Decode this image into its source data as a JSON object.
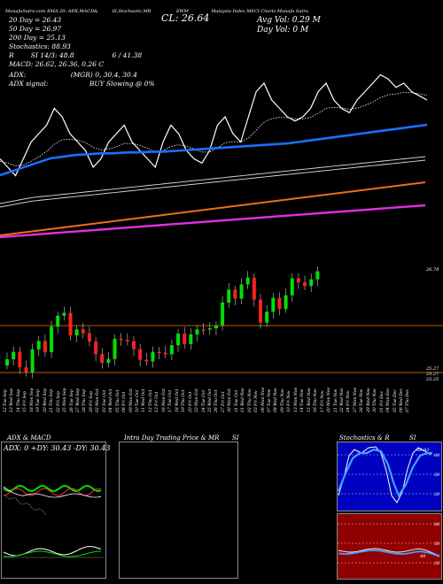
{
  "header": {
    "row1": [
      "MunafaSutra.com",
      "EMA 20: ",
      "ADX,MACD&",
      "SI,Stochastic,MR",
      "Malaysia Index",
      "SI",
      "MSCI Charts",
      "MunafaSutra.com",
      "Malaysia Index MSCI Charts Munafa Sutra",
      "EWM"
    ],
    "ma20": "20  Day = 26.43",
    "ma50": "50  Day = 26.97",
    "ma200": "200  Day = 25.13",
    "stoch": "Stochastics: 88.93",
    "rsi": "SI 14/3: 48.8",
    "rsi_extra": "6 / 41.38",
    "macd": "MACD: 26.62, 26.36, 0.26  C",
    "adx": "ADX:",
    "adx_vals": "(MGR) 0, 30.4, 30.4",
    "adx_signal": "ADX signal:",
    "buy_signal": "BUY Slowing @ 0%",
    "close": "CL: 26.64",
    "avg_vol": "Avg Vol: 0.29 M",
    "day_vol": "Day Vol: 0  M"
  },
  "colors": {
    "price": "#ffffff",
    "ema20": "#ffffff",
    "ema50": "#1a6fff",
    "ema100": "#d8d8d8",
    "ema200": "#e8701a",
    "ema400": "#e030e0",
    "bull": "#00e000",
    "bear": "#ff2020",
    "bg": "#000000",
    "stoch_bg": "#0000c0",
    "mrsi_bg": "#900000"
  },
  "candles": {
    "price_top": "26.78",
    "price_mid": "25.27",
    "price_low": "25.27",
    "price_bottom": "25.25"
  },
  "dates": [
    "12 Tue Sep",
    "13 Wed Sep",
    "14 Thu Sep",
    "15 Fri Sep",
    "18 Mon Sep",
    "19 Tue Sep",
    "20 Wed Sep",
    "21 Thu Sep",
    "22 Fri Sep",
    "25 Mon Sep",
    "26 Tue Sep",
    "27 Wed Sep",
    "28 Thu Sep",
    "29 Fri Sep",
    "02 Mon Oct",
    "03 Tue Oct",
    "04 Wed Oct",
    "05 Thu Oct",
    "06 Fri Oct",
    "09 Mon Oct",
    "10 Tue Oct",
    "11 Wed Oct",
    "12 Thu Oct",
    "13 Fri Oct",
    "16 Mon Oct",
    "17 Tue Oct",
    "18 Wed Oct",
    "19 Thu Oct",
    "20 Fri Oct",
    "23 Mon Oct",
    "24 Tue Oct",
    "25 Wed Oct",
    "26 Thu Oct",
    "27 Fri Oct",
    "30 Mon Oct",
    "31 Tue Oct",
    "01 Wed Nov",
    "02 Thu Nov",
    "03 Fri Nov",
    "06 Mon Nov",
    "07 Tue Nov",
    "08 Wed Nov",
    "09 Thu Nov",
    "10 Fri Nov",
    "13 Mon Nov",
    "14 Tue Nov",
    "15 Wed Nov",
    "16 Thu Nov",
    "17 Fri Nov",
    "20 Mon Nov",
    "21 Tue Nov",
    "22 Wed Nov",
    "24 Fri Nov",
    "27 Mon Nov",
    "28 Tue Nov",
    "29 Wed Nov",
    "30 Thu Nov",
    "01 Fri Dec",
    "04 Mon Dec",
    "05 Tue Dec",
    "06 Wed Dec",
    "07 Thu Dec"
  ],
  "panels": {
    "adx_title": "ADX  & MACD",
    "adx_box": "ADX: 0  +DY: 30.43  -DY: 30.43",
    "mr_title": "Intra  Day Trading Price  & MR",
    "mr_si": "SI",
    "stoch_title": "Stochastics & R",
    "stoch_si": "SI",
    "stoch_val": "88.93",
    "stoch_ticks": [
      "80",
      "50",
      "20"
    ],
    "mrsi_ticks": [
      "80",
      "50",
      "20"
    ],
    "mrsi_val": "48"
  },
  "chart_data": [
    {
      "type": "line",
      "title": "Malaysia Index MSCI",
      "series": [
        {
          "name": "Price",
          "values": [
            26.0,
            25.9,
            25.8,
            26.0,
            26.2,
            26.3,
            26.4,
            26.6,
            26.5,
            26.3,
            26.2,
            26.1,
            25.9,
            26.0,
            26.2,
            26.3,
            26.4,
            26.2,
            26.1,
            26.0,
            25.9,
            26.2,
            26.4,
            26.3,
            26.1,
            26.0,
            25.95,
            26.1,
            26.4,
            26.5,
            26.3,
            26.2,
            26.5,
            26.8,
            26.9,
            26.7,
            26.6,
            26.5,
            26.45,
            26.5,
            26.6,
            26.8,
            26.9,
            26.7,
            26.6,
            26.55,
            26.7,
            26.8,
            26.9,
            27.0,
            26.95,
            26.85,
            26.9,
            26.8,
            26.75,
            26.7
          ]
        },
        {
          "name": "EMA 50",
          "values": [
            25.9,
            25.95,
            26.0,
            26.05,
            26.1,
            26.12,
            26.14,
            26.15,
            26.16,
            26.16,
            26.17,
            26.17,
            26.18,
            26.18,
            26.19,
            26.2,
            26.21,
            26.22,
            26.23,
            26.24,
            26.25,
            26.26,
            26.27,
            26.28,
            26.3,
            26.32,
            26.34,
            26.36,
            26.38,
            26.4,
            26.42,
            26.44,
            26.46,
            26.48,
            26.5
          ]
        },
        {
          "name": "EMA 200",
          "values": [
            25.3,
            25.35,
            25.4,
            25.45,
            25.5,
            25.55,
            25.6,
            25.65,
            25.7,
            25.75,
            25.8
          ]
        }
      ]
    },
    {
      "type": "bar",
      "title": "Candles",
      "values": [
        25.4,
        25.3,
        25.5,
        25.6,
        26.0,
        26.1,
        25.9,
        25.7,
        25.6,
        25.3,
        25.8,
        25.6,
        25.5,
        25.4,
        25.5,
        25.6,
        25.7,
        25.9,
        25.8,
        26.0,
        26.2,
        26.5,
        26.6,
        26.4,
        26.1,
        26.3,
        26.5,
        26.6,
        26.7,
        26.7
      ]
    }
  ]
}
